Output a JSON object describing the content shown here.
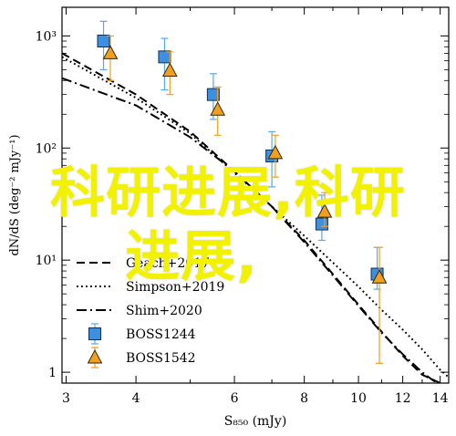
{
  "chart_data": {
    "type": "line",
    "xlabel": "S₈₅₀ (mJy)",
    "ylabel": "dN/dS (deg⁻² mJy⁻¹)",
    "xscale": "log",
    "yscale": "log",
    "xlim": [
      2.95,
      14.5
    ],
    "ylim": [
      0.8,
      1800
    ],
    "xticks": [
      3,
      4,
      6,
      8,
      10,
      12,
      14
    ],
    "xtick_labels": [
      "3",
      "4",
      "6",
      "8",
      "10",
      "12",
      "14"
    ],
    "yticks": [
      1,
      10,
      100,
      1000
    ],
    "ytick_labels": [
      "1",
      "10¹",
      "10²",
      "10³"
    ],
    "grid": false,
    "legend_position": "lower-left",
    "series": [
      {
        "name": "Geach+2017",
        "style": "dashed",
        "x": [
          2.95,
          4,
          5,
          6,
          7,
          8,
          9,
          10,
          11,
          12,
          13,
          14
        ],
        "y": [
          700,
          300,
          140,
          62,
          30,
          15,
          7.5,
          4.0,
          2.3,
          1.4,
          0.95,
          0.8
        ]
      },
      {
        "name": "Simpson+2019",
        "style": "dotted",
        "x": [
          2.95,
          4,
          5,
          6,
          7,
          8,
          9,
          10,
          11,
          12,
          13,
          14,
          14.5
        ],
        "y": [
          650,
          280,
          135,
          60,
          30,
          16.5,
          9.5,
          5.8,
          3.6,
          2.4,
          1.6,
          1.05,
          0.9
        ]
      },
      {
        "name": "Shim+2020",
        "style": "dashdot",
        "x": [
          2.95,
          4,
          5,
          6,
          7,
          8,
          9,
          10,
          11,
          12,
          13,
          13.8
        ],
        "y": [
          420,
          240,
          125,
          62,
          30,
          14.5,
          7.3,
          3.9,
          2.25,
          1.45,
          1.0,
          0.8
        ]
      },
      {
        "name": "BOSS1244",
        "marker": "square",
        "color": "#3d8fe0",
        "x": [
          3.5,
          4.5,
          5.5,
          7.0,
          8.6,
          10.8
        ],
        "y": [
          900,
          650,
          300,
          85,
          21,
          7.5
        ],
        "yerr_low": [
          500,
          330,
          180,
          45,
          15,
          5.5
        ],
        "yerr_high": [
          1350,
          950,
          460,
          140,
          38,
          13
        ]
      },
      {
        "name": "BOSS1542",
        "marker": "triangle",
        "color": "#f0a020",
        "x": [
          3.6,
          4.6,
          5.6,
          7.1,
          8.7,
          10.9
        ],
        "y": [
          700,
          490,
          220,
          90,
          27,
          7.0
        ],
        "yerr_low": [
          400,
          300,
          130,
          55,
          20,
          1.2
        ],
        "yerr_high": [
          1000,
          720,
          350,
          130,
          40,
          13
        ]
      }
    ]
  },
  "overlay": {
    "line1": "科研进展,科研",
    "line2": "进展,"
  },
  "colors": {
    "overlay_text": "#f2f200",
    "boss1244": "#3d8fe0",
    "boss1542": "#f0a020",
    "error_bar_1244": "#5aa8ea",
    "error_bar_1542": "#f0a020"
  }
}
